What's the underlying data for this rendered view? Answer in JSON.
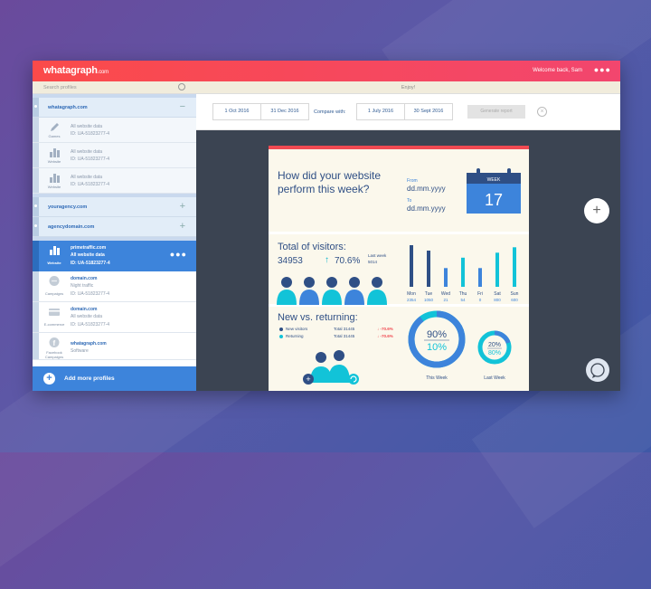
{
  "app": {
    "logo": "whatagraph",
    "logo_suffix": ".com",
    "welcome": "Welcome back, Sam",
    "menu_dots": "●●●"
  },
  "sidebar": {
    "search_placeholder": "Search profiles",
    "groups": [
      {
        "name": "whatagraph.com",
        "toggle": "−"
      },
      {
        "name": "youragency.com",
        "toggle": "+"
      },
      {
        "name": "agencydomain.com",
        "toggle": "+"
      }
    ],
    "profiles": [
      {
        "caption": "Games",
        "line1": "All website data",
        "line2": "ID: UA-51823277-4"
      },
      {
        "caption": "Website",
        "line1": "All website data",
        "line2": "ID: UA-51823277-4"
      },
      {
        "caption": "Website",
        "line1": "All website data",
        "line2": "ID: UA-51823277-4"
      }
    ],
    "selected": {
      "caption": "Website",
      "line1": "primetraffic.com",
      "line2": "All website data",
      "line3": "ID: UA-51823277-4",
      "dots": "●●●"
    },
    "others": [
      {
        "caption": "Campaigns",
        "line1": "domain.com",
        "line2": "Night traffic",
        "line3": "ID: UA-51823277-4"
      },
      {
        "caption": "E-commerce",
        "line1": "domain.com",
        "line2": "All website data",
        "line3": "ID: UA-51823277-4"
      },
      {
        "caption": "Facebook Campaigns",
        "line1": "whatagraph.com",
        "line2": "Software",
        "line3": ""
      }
    ],
    "add_label": "Add more profiles",
    "add_icon": "+"
  },
  "main": {
    "enjoy": "Enjoy!",
    "dates": {
      "from1": "1 Oct 2016",
      "to1": "31 Dec 2016",
      "compare_label": "Compare with:",
      "from2": "1 July 2016",
      "to2": "30 Sept 2016",
      "generate": "Generate report",
      "clear": "×"
    },
    "fab": "+"
  },
  "report": {
    "question": "How did your website perform this week?",
    "from_label": "From",
    "from_value": "dd.mm.yyyy",
    "to_label": "To",
    "to_value": "dd.mm.yyyy",
    "calendar": {
      "week_label": "WEEK",
      "number": "17"
    },
    "visitors": {
      "title": "Total of visitors:",
      "value": "34953",
      "arrow": "↑",
      "change": "70.6%",
      "lw_label": "Last week",
      "lw_value": "5014"
    },
    "returning": {
      "title": "New vs. returning:",
      "new_label": "New visitors",
      "ret_label": "Returning",
      "total_label": "Total",
      "new_total": "31445",
      "ret_total": "31445",
      "new_change": "↓ -70.6%",
      "ret_change": "↓ -70.6%"
    },
    "donuts": {
      "this_week_new": "90%",
      "this_week_ret": "10%",
      "last_week_new": "20%",
      "last_week_ret": "80%",
      "this_label": "This Week",
      "last_label": "Last Week"
    },
    "colors": {
      "navy": "#2f4f85",
      "blue": "#3d84db",
      "cyan": "#12c3d8",
      "red": "#f14a52"
    }
  },
  "chart_data": {
    "type": "bar",
    "categories": [
      "Mon",
      "Tue",
      "Wed",
      "Thu",
      "Fri",
      "Sat",
      "Sun"
    ],
    "series": [
      {
        "values": [
          2354,
          1050,
          21,
          54,
          0,
          800,
          600
        ]
      }
    ],
    "value_labels": [
      "2354",
      "1050",
      "21",
      "54",
      "0",
      "800",
      "600"
    ],
    "relative_heights": [
      1.0,
      0.87,
      0.45,
      0.7,
      0.45,
      0.82,
      0.95
    ]
  }
}
